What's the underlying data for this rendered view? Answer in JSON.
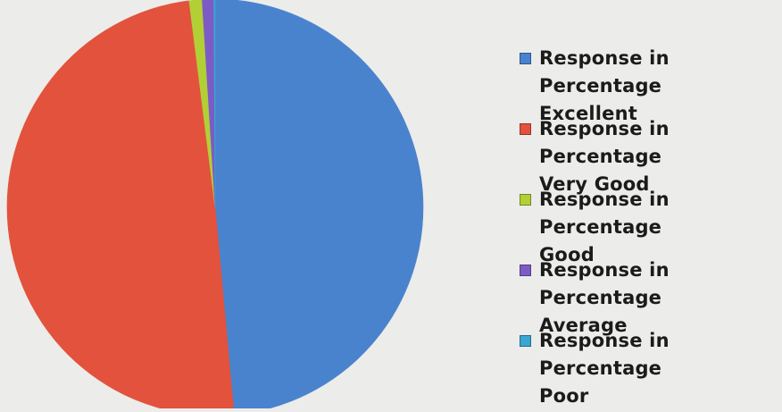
{
  "chart_data": {
    "type": "pie",
    "title": "",
    "series": [
      {
        "name": "Response in Percentage",
        "categories": [
          "Excellent",
          "Very Good",
          "Good",
          "Average",
          "Poor"
        ],
        "values": [
          48.6,
          49.5,
          1.0,
          0.9,
          0.1
        ]
      }
    ],
    "colors": [
      "#4a83cd",
      "#e2523c",
      "#b3cf36",
      "#7c5cc4",
      "#3aa6d3"
    ],
    "start_angle_deg": 0,
    "direction": "clockwise",
    "legend_position": "right"
  },
  "legend": {
    "items": [
      {
        "line1": "Response in Percentage",
        "line2": "Excellent",
        "color": "#4a83cd"
      },
      {
        "line1": "Response in Percentage",
        "line2": "Very Good",
        "color": "#e2523c"
      },
      {
        "line1": "Response in Percentage",
        "line2": "Good",
        "color": "#b3cf36"
      },
      {
        "line1": "Response in Percentage",
        "line2": "Average",
        "color": "#7c5cc4"
      },
      {
        "line1": "Response in Percentage",
        "line2": "Poor",
        "color": "#3aa6d3"
      }
    ]
  }
}
